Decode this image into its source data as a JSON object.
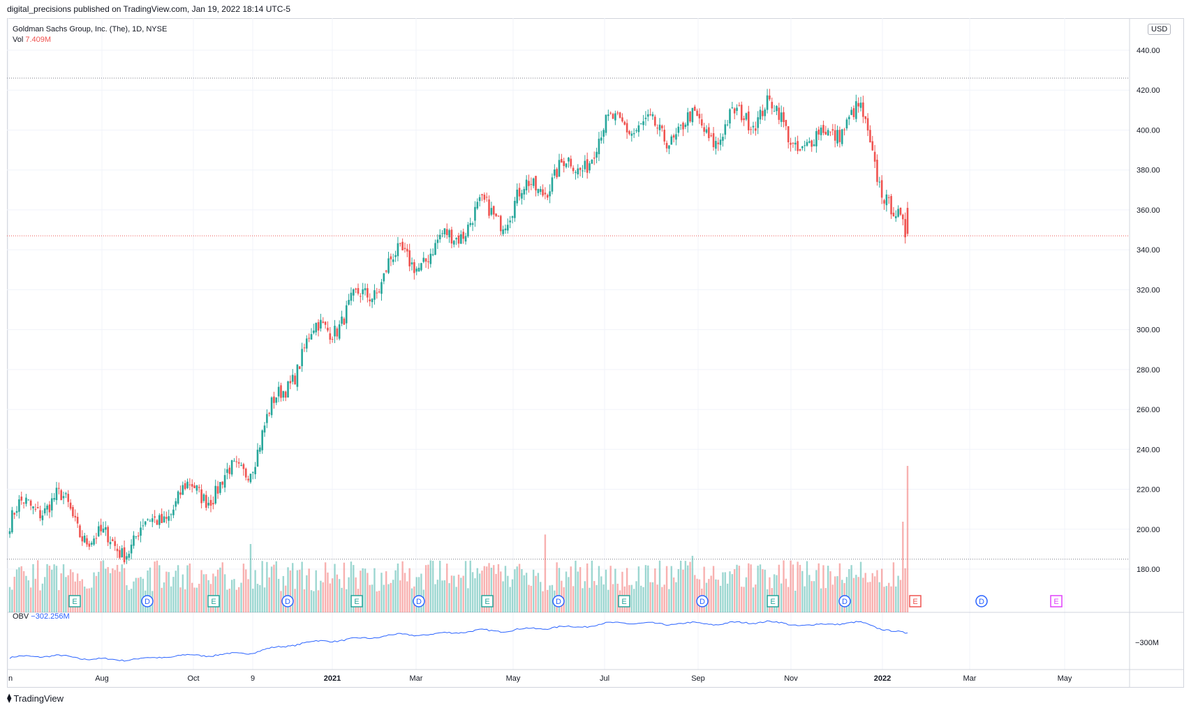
{
  "header": {
    "published_line": "digital_precisions published on TradingView.com, Jan 19, 2022 18:14 UTC-5"
  },
  "legend": {
    "symbol_line": "Goldman Sachs Group, Inc. (The), 1D, NYSE",
    "vol_label": "Vol",
    "vol_value": "7.409M",
    "obv_label": "OBV",
    "obv_value": "−302.256M"
  },
  "currency": "USD",
  "footer": {
    "brand": "TradingView",
    "logo_icon": "tradingview-logo-icon"
  },
  "colors": {
    "up": "#26a69a",
    "down": "#ef5350",
    "obv_line": "#2962ff",
    "event_earnings": "#26a69a",
    "event_dividend": "#2962ff",
    "event_earnings_latest": "#ef5350",
    "event_earnings_future": "#e040fb"
  },
  "chart_data": {
    "type": "candlestick",
    "title": "Goldman Sachs Group, Inc. (The), 1D, NYSE",
    "price_axis": {
      "ticks": [
        "440.00",
        "420.00",
        "400.00",
        "380.00",
        "360.00",
        "340.00",
        "320.00",
        "300.00",
        "280.00",
        "260.00",
        "240.00",
        "220.00",
        "200.00",
        "180.00"
      ],
      "ylim": [
        163,
        446
      ]
    },
    "time_axis": {
      "labels": [
        "n",
        "Aug",
        "Oct",
        "9",
        "2021",
        "Mar",
        "May",
        "Jul",
        "Sep",
        "Nov",
        "2022",
        "Mar",
        "May"
      ]
    },
    "price_path_approx": [
      [
        "Jul 2020",
        203
      ],
      [
        "Aug 2020",
        207
      ],
      [
        "Sep 2020",
        200
      ],
      [
        "Oct 2020",
        198
      ],
      [
        "Nov 2020",
        214
      ],
      [
        "Dec 2020",
        240
      ],
      [
        "Jan 2021",
        275
      ],
      [
        "Feb 2021",
        305
      ],
      [
        "Mar 2021",
        340
      ],
      [
        "Apr 2021",
        330
      ],
      [
        "May 2021",
        360
      ],
      [
        "Jun 2021",
        375
      ],
      [
        "Jul 2021",
        372
      ],
      [
        "Aug 2021",
        412
      ],
      [
        "Sep 2021",
        402
      ],
      [
        "Oct 2021",
        390
      ],
      [
        "Nov 2021",
        420
      ],
      [
        "Dec 2021",
        390
      ],
      [
        "Jan 2022",
        400
      ],
      [
        "Jan 19 2022",
        348
      ]
    ],
    "horizontal_levels": [
      {
        "value": 426,
        "style": "dotted",
        "color": "#787b86"
      },
      {
        "value": 347,
        "style": "dotted",
        "color": "#ef5350"
      },
      {
        "value": 185,
        "style": "dotted",
        "color": "#787b86"
      }
    ],
    "volume": {
      "last": "7.409M"
    },
    "obv": {
      "last": "−302.256M",
      "axis_label": "−300M"
    },
    "events": [
      {
        "type": "E",
        "style": "earnings"
      },
      {
        "type": "D",
        "style": "dividend"
      },
      {
        "type": "E",
        "style": "earnings"
      },
      {
        "type": "D",
        "style": "dividend"
      },
      {
        "type": "E",
        "style": "earnings"
      },
      {
        "type": "D",
        "style": "dividend"
      },
      {
        "type": "E",
        "style": "earnings"
      },
      {
        "type": "D",
        "style": "dividend"
      },
      {
        "type": "E",
        "style": "earnings"
      },
      {
        "type": "D",
        "style": "dividend"
      },
      {
        "type": "E",
        "style": "earnings"
      },
      {
        "type": "D",
        "style": "dividend"
      },
      {
        "type": "E",
        "style": "earnings_latest"
      },
      {
        "type": "D",
        "style": "dividend"
      },
      {
        "type": "E",
        "style": "earnings_future"
      }
    ]
  }
}
